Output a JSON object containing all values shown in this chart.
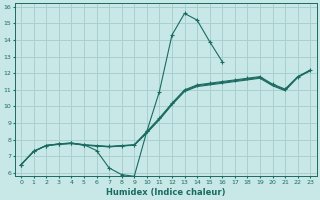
{
  "xlabel": "Humidex (Indice chaleur)",
  "bg_color": "#c8e8e8",
  "grid_color": "#aacfcf",
  "line_color": "#1a6b60",
  "xlim": [
    -0.5,
    23.5
  ],
  "ylim": [
    6,
    16
  ],
  "xticks": [
    0,
    1,
    2,
    3,
    4,
    5,
    6,
    7,
    8,
    9,
    10,
    11,
    12,
    13,
    14,
    15,
    16,
    17,
    18,
    19,
    20,
    21,
    22,
    23
  ],
  "yticks": [
    6,
    7,
    8,
    9,
    10,
    11,
    12,
    13,
    14,
    15,
    16
  ],
  "lines": [
    {
      "x": [
        0,
        1,
        2,
        3,
        4,
        5,
        6,
        7,
        8,
        9,
        10,
        11,
        12,
        13,
        14,
        15,
        16
      ],
      "y": [
        6.5,
        7.3,
        7.65,
        7.75,
        7.8,
        7.7,
        7.35,
        6.3,
        5.9,
        5.8,
        8.5,
        10.9,
        14.3,
        15.6,
        15.2,
        13.9,
        12.7
      ],
      "marker": true
    },
    {
      "x": [
        0,
        1,
        2,
        3,
        4,
        5,
        6,
        7,
        8,
        9,
        10,
        11,
        12,
        13,
        14,
        15,
        16,
        17,
        18,
        19,
        20,
        21,
        22,
        23
      ],
      "y": [
        6.5,
        7.3,
        7.65,
        7.75,
        7.8,
        7.7,
        7.65,
        7.6,
        7.65,
        7.7,
        8.5,
        9.3,
        10.2,
        11.0,
        11.3,
        11.4,
        11.5,
        11.6,
        11.7,
        11.8,
        11.35,
        11.05,
        11.8,
        12.2
      ],
      "marker": true
    },
    {
      "x": [
        0,
        1,
        2,
        3,
        4,
        5,
        6,
        7,
        8,
        9,
        10,
        11,
        12,
        13,
        14,
        15,
        16,
        17,
        18,
        19,
        20,
        21,
        22,
        23
      ],
      "y": [
        6.5,
        7.3,
        7.65,
        7.72,
        7.77,
        7.67,
        7.62,
        7.57,
        7.62,
        7.67,
        8.4,
        9.2,
        10.1,
        10.9,
        11.2,
        11.3,
        11.4,
        11.5,
        11.6,
        11.7,
        11.25,
        10.95,
        11.75,
        12.15
      ],
      "marker": false
    },
    {
      "x": [
        0,
        1,
        2,
        3,
        4,
        5,
        6,
        7,
        8,
        9,
        10,
        11,
        12,
        13,
        14,
        15,
        16,
        17,
        18,
        19,
        20,
        21,
        22,
        23
      ],
      "y": [
        6.5,
        7.3,
        7.65,
        7.73,
        7.78,
        7.68,
        7.63,
        7.58,
        7.63,
        7.68,
        8.45,
        9.25,
        10.15,
        10.95,
        11.25,
        11.35,
        11.45,
        11.55,
        11.65,
        11.75,
        11.3,
        11.0,
        11.77,
        12.17
      ],
      "marker": false
    }
  ]
}
